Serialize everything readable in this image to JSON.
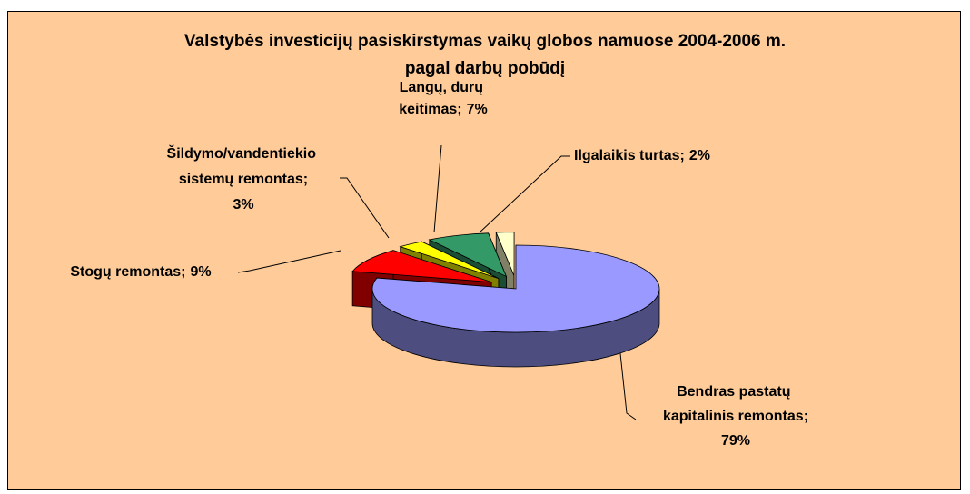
{
  "chart_data": {
    "type": "pie3d",
    "title": "Valstybės investicijų pasiskirstymas vaikų globos namuose 2004-2006 m.",
    "subtitle": "pagal darbų pobūdį",
    "categories": [
      "Bendras pastatų kapitalinis remontas;",
      "Stogų remontas;",
      "Šildymo/vandentiekio sistemų remontas;",
      "Langų, durų keitimas;",
      "Ilgalaikis turtas;"
    ],
    "values": [
      79,
      9,
      3,
      7,
      2
    ],
    "value_labels": [
      "79%",
      "9%",
      "3%",
      "7%",
      "2%"
    ],
    "colors": [
      "#9999ff",
      "#ff0000",
      "#ffff00",
      "#339966",
      "#ffffcc"
    ]
  }
}
